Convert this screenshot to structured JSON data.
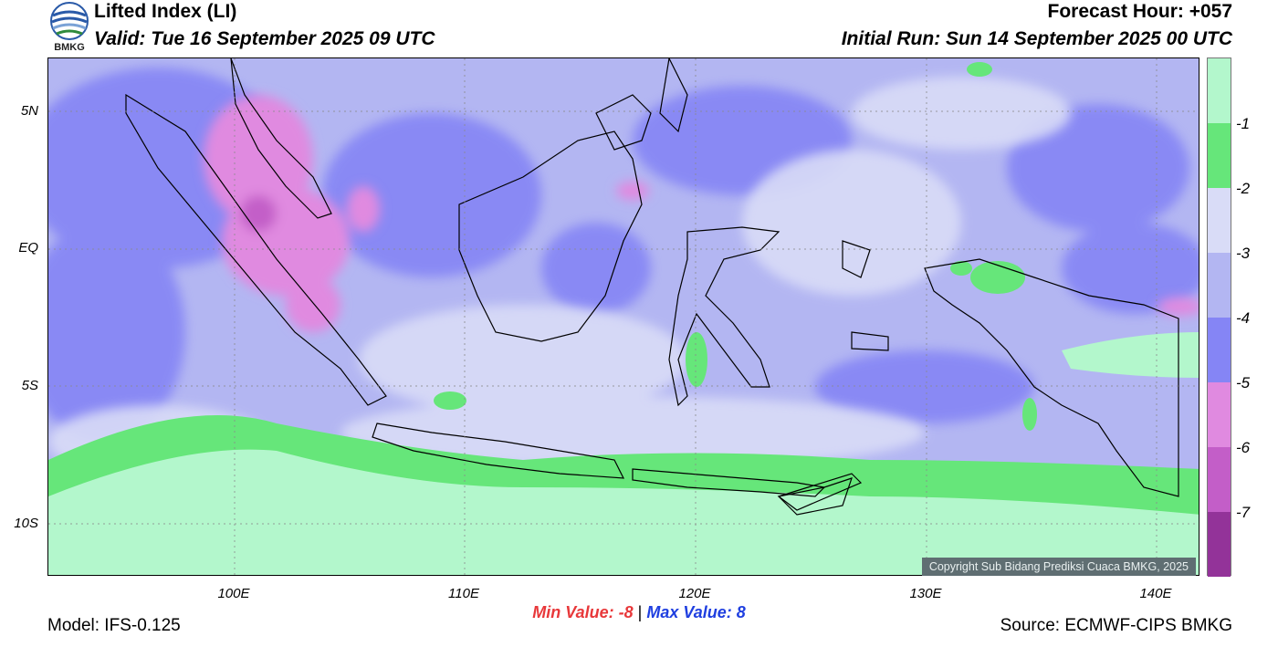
{
  "header": {
    "title": "Lifted Index (LI)",
    "valid": "Valid: Tue 16 September 2025 09 UTC",
    "forecast_hour": "Forecast Hour: +057",
    "initial_run": "Initial Run: Sun 14 September 2025 00 UTC",
    "logo_text": "BMKG"
  },
  "map": {
    "lat_labels": [
      "5N",
      "EQ",
      "5S",
      "10S"
    ],
    "lon_labels": [
      "100E",
      "110E",
      "120E",
      "130E",
      "140E"
    ],
    "copyright": "Copyright Sub Bidang Prediksi Cuaca BMKG, 2025"
  },
  "colorbar": {
    "labels": [
      "-1",
      "-2",
      "-3",
      "-4",
      "-5",
      "-6",
      "-7"
    ],
    "colors": [
      "#b3f7cc",
      "#66e67a",
      "#d9dcf7",
      "#b3b6f2",
      "#8585f5",
      "#e08ae0",
      "#c35ec8",
      "#933399"
    ]
  },
  "stats": {
    "min_label": "Min Value:",
    "min_value": "-8",
    "separator": "|",
    "max_label": "Max Value:",
    "max_value": "8"
  },
  "footer": {
    "model": "Model: IFS-0.125",
    "source": "Source: ECMWF-CIPS BMKG"
  }
}
